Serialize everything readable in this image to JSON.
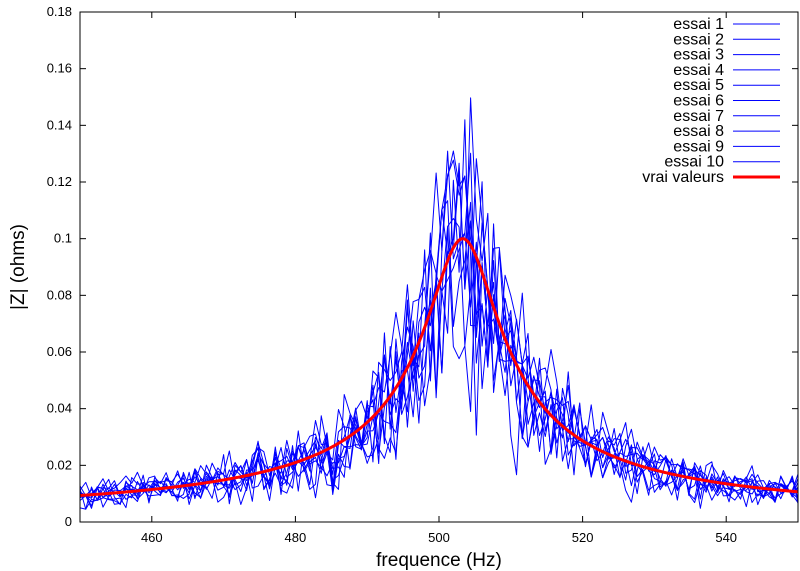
{
  "chart_data": {
    "type": "line",
    "title": "",
    "xlabel": "frequence (Hz)",
    "ylabel": "|Z| (ohms)",
    "xlim": [
      450,
      550
    ],
    "ylim": [
      0,
      0.18
    ],
    "xticks": [
      460,
      480,
      500,
      520,
      540
    ],
    "yticks": [
      0,
      0.02,
      0.04,
      0.06,
      0.08,
      0.1,
      0.12,
      0.14,
      0.16,
      0.18
    ],
    "grid": false,
    "legend_position": "top-right",
    "model": {
      "f0": 503.3,
      "peak": 0.1,
      "half_width": 5.0
    },
    "series": [
      {
        "name": "essai 1",
        "color": "#0000ff",
        "noise": 0.25
      },
      {
        "name": "essai 2",
        "color": "#0000ff",
        "noise": 0.25
      },
      {
        "name": "essai 3",
        "color": "#0000ff",
        "noise": 0.25
      },
      {
        "name": "essai 4",
        "color": "#0000ff",
        "noise": 0.25
      },
      {
        "name": "essai 5",
        "color": "#0000ff",
        "noise": 0.25
      },
      {
        "name": "essai 6",
        "color": "#0000ff",
        "noise": 0.25
      },
      {
        "name": "essai 7",
        "color": "#0000ff",
        "noise": 0.25
      },
      {
        "name": "essai 8",
        "color": "#0000ff",
        "noise": 0.25
      },
      {
        "name": "essai 9",
        "color": "#0000ff",
        "noise": 0.25
      },
      {
        "name": "essai 10",
        "color": "#0000ff",
        "noise": 0.25
      },
      {
        "name": "vrai valeurs",
        "color": "#ff0000",
        "noise": 0
      }
    ]
  }
}
